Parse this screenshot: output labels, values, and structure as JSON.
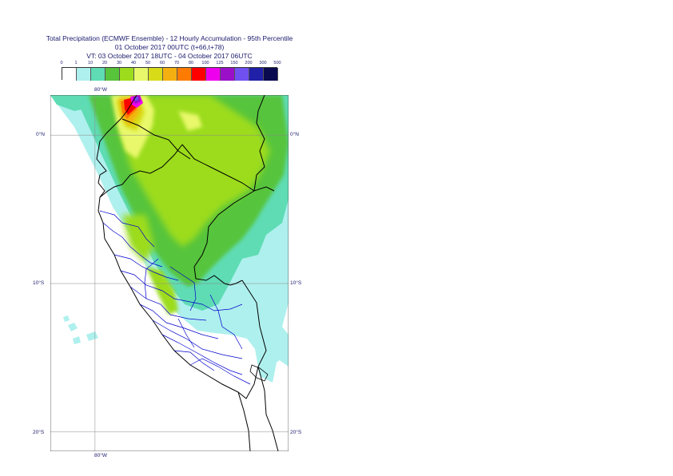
{
  "title": {
    "line1": "Total Precipitation (ECMWF Ensemble) - 12 Hourly Accumulation - 95th Percentile",
    "line2": "01 October 2017 00UTC (t+66,t+78)",
    "line3": "VT: 03 October 2017 18UTC - 04 October 2017 06UTC"
  },
  "colorbar": {
    "ticks": [
      "0",
      "1",
      "10",
      "20",
      "30",
      "40",
      "50",
      "60",
      "70",
      "80",
      "100",
      "125",
      "150",
      "200",
      "300",
      "500"
    ],
    "colors": [
      "#ffffff",
      "#aef0ee",
      "#5fdcb4",
      "#57c43c",
      "#9cdc1c",
      "#e8f86a",
      "#d8dc18",
      "#f4b010",
      "#ff7c00",
      "#ff0000",
      "#ee00ee",
      "#9a10c8",
      "#7050f0",
      "#2020a8",
      "#0a0a50"
    ]
  },
  "axes": {
    "lon_top": "80°W",
    "lon_bottom": "80°W",
    "lat_labels": [
      "0°N",
      "10°S",
      "20°S"
    ]
  },
  "map": {
    "lon_range": [
      -83,
      -67
    ],
    "lat_range": [
      2.7,
      -21.3
    ],
    "grid_lons": [
      -80
    ],
    "grid_lats": [
      0,
      -10,
      -20
    ]
  }
}
